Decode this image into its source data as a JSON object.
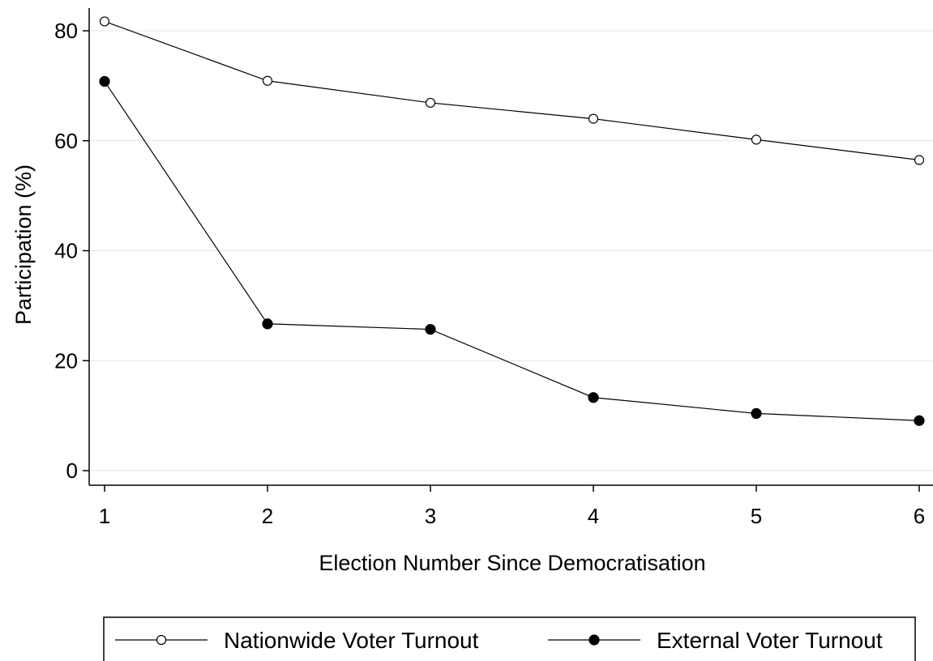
{
  "chart_data": {
    "type": "line",
    "title": "",
    "xlabel": "Election Number Since Democratisation",
    "ylabel": "Participation (%)",
    "x": [
      1,
      2,
      3,
      4,
      5,
      6
    ],
    "x_ticks": [
      "1",
      "2",
      "3",
      "4",
      "5",
      "6"
    ],
    "y_ticks": [
      "0",
      "20",
      "40",
      "60",
      "80"
    ],
    "xlim": [
      1,
      6
    ],
    "ylim": [
      0,
      80
    ],
    "grid": true,
    "legend_position": "bottom",
    "series": [
      {
        "name": "Nationwide Voter Turnout",
        "marker": "hollow-circle",
        "color": "#000000",
        "values": [
          81.7,
          70.9,
          66.9,
          64.0,
          60.2,
          56.5
        ]
      },
      {
        "name": "External Voter Turnout",
        "marker": "filled-circle",
        "color": "#000000",
        "values": [
          70.8,
          26.7,
          25.7,
          13.3,
          10.4,
          9.1
        ]
      }
    ]
  }
}
